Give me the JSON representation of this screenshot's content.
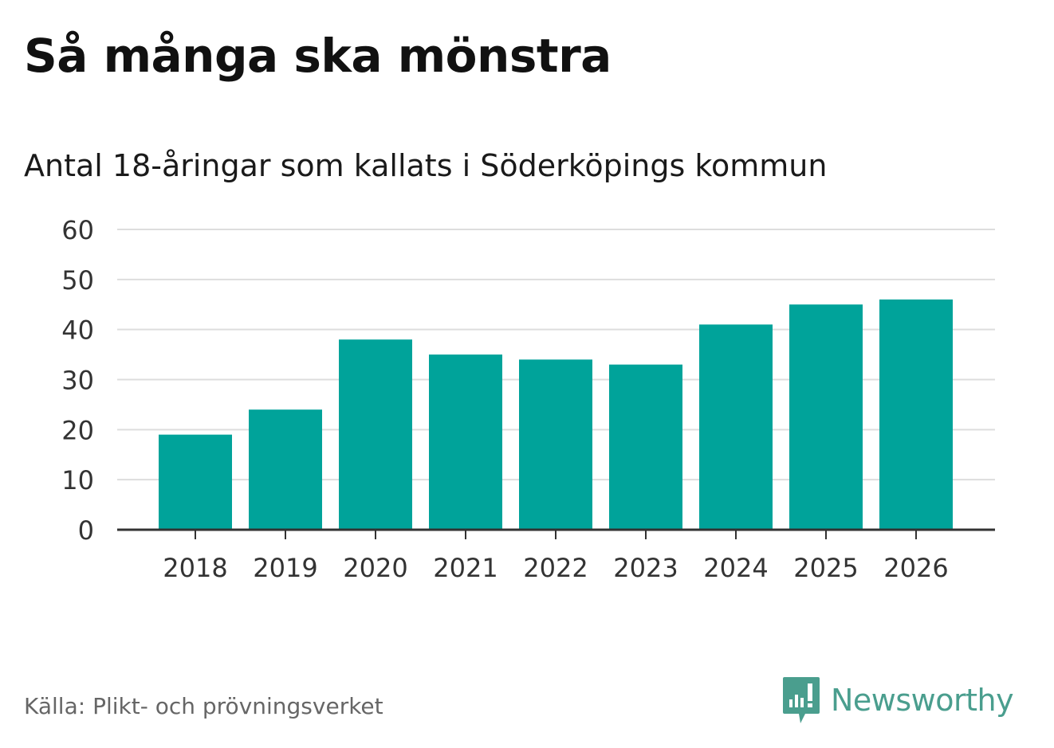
{
  "title": "Så många ska mönstra",
  "subtitle": "Antal 18-åringar som kallats i Söderköpings kommun",
  "source": "Källa: Plikt- och prövningsverket",
  "brand": {
    "name": "Newsworthy",
    "icon": "newsworthy-logo-icon"
  },
  "colors": {
    "bar": "#00a39a",
    "grid": "#dddddd",
    "axis": "#333333",
    "brand": "#4a9e8e"
  },
  "chart_data": {
    "type": "bar",
    "title": "Så många ska mönstra",
    "subtitle": "Antal 18-åringar som kallats i Söderköpings kommun",
    "categories": [
      "2018",
      "2019",
      "2020",
      "2021",
      "2022",
      "2023",
      "2024",
      "2025",
      "2026"
    ],
    "values": [
      19,
      24,
      38,
      35,
      34,
      33,
      41,
      45,
      46
    ],
    "yticks": [
      0,
      10,
      20,
      30,
      40,
      50,
      60
    ],
    "ylim": [
      0,
      60
    ],
    "xlabel": "",
    "ylabel": "",
    "grid": true
  }
}
